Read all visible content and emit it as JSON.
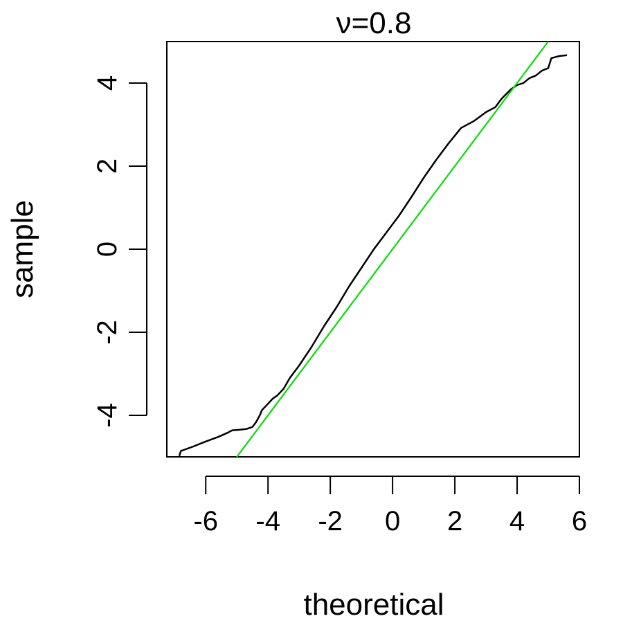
{
  "chart_data": {
    "type": "line",
    "title": "ν=0.8",
    "xlabel": "theoretical",
    "ylabel": "sample",
    "xlim": [
      -7.25,
      6
    ],
    "ylim": [
      -5,
      5
    ],
    "x_ticks": [
      -6,
      -4,
      -2,
      0,
      2,
      4,
      6
    ],
    "y_ticks": [
      -4,
      -2,
      0,
      2,
      4
    ],
    "x_tick_labels": [
      "-6",
      "-4",
      "-2",
      "0",
      "2",
      "4",
      "6"
    ],
    "y_tick_labels": [
      "-4",
      "-2",
      "0",
      "2",
      "4"
    ],
    "grid": false,
    "series": [
      {
        "color": "#000000",
        "x": [
          -6.85,
          -6.8,
          -6.4,
          -6.0,
          -5.6,
          -5.3,
          -5.15,
          -4.95,
          -4.7,
          -4.5,
          -4.4,
          -4.35,
          -4.25,
          -4.2,
          -4.15,
          -4.0,
          -3.85,
          -3.7,
          -3.5,
          -3.3,
          -3.0,
          -2.6,
          -2.2,
          -1.8,
          -1.4,
          -1.0,
          -0.6,
          -0.2,
          0.2,
          0.6,
          1.0,
          1.4,
          1.8,
          2.2,
          2.6,
          3.0,
          3.3,
          3.5,
          3.8,
          4.0,
          4.2,
          4.4,
          4.6,
          4.8,
          5.0,
          5.1,
          5.2,
          5.35,
          5.6
        ],
        "y": [
          -4.98,
          -4.86,
          -4.75,
          -4.63,
          -4.52,
          -4.42,
          -4.36,
          -4.35,
          -4.33,
          -4.28,
          -4.18,
          -4.12,
          -3.98,
          -3.88,
          -3.84,
          -3.72,
          -3.6,
          -3.52,
          -3.36,
          -3.1,
          -2.8,
          -2.35,
          -1.85,
          -1.4,
          -0.9,
          -0.45,
          0.0,
          0.4,
          0.8,
          1.25,
          1.72,
          2.15,
          2.55,
          2.92,
          3.08,
          3.3,
          3.42,
          3.62,
          3.85,
          3.95,
          4.0,
          4.12,
          4.18,
          4.3,
          4.36,
          4.6,
          4.62,
          4.65,
          4.67
        ]
      },
      {
        "color": "#00e000",
        "x": [
          -5.0,
          5.0
        ],
        "y": [
          -5.0,
          5.0
        ]
      }
    ]
  }
}
